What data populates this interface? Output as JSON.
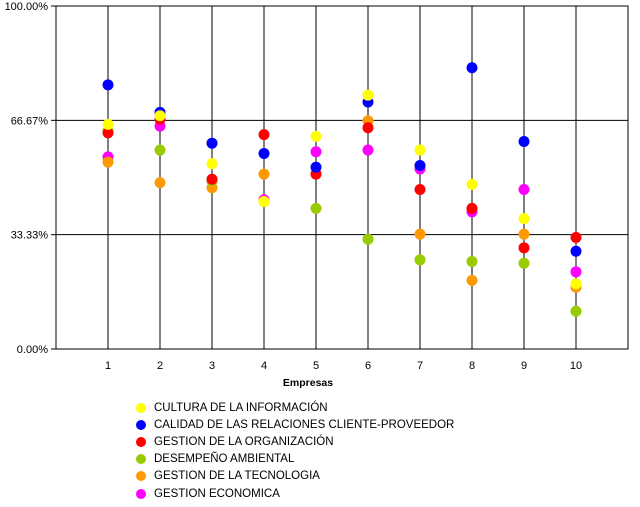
{
  "chart_data": {
    "type": "scatter",
    "title": "",
    "xlabel": "Empresas",
    "ylabel": "",
    "x": [
      1,
      2,
      3,
      4,
      5,
      6,
      7,
      8,
      9,
      10
    ],
    "x_ticks": [
      "1",
      "2",
      "3",
      "4",
      "5",
      "6",
      "7",
      "8",
      "9",
      "10"
    ],
    "y_ticks": [
      "0.00%",
      "33.33%",
      "66.67%",
      "100.00%"
    ],
    "y_tick_values": [
      0,
      33.33,
      66.67,
      100
    ],
    "xlim": [
      0,
      11
    ],
    "ylim": [
      0,
      100
    ],
    "grid": true,
    "legend_position": "bottom",
    "series": [
      {
        "name": "CULTURA DE LA INFORMACIÓN",
        "color": "#ffff00",
        "values": [
          65.5,
          68,
          54,
          43,
          62,
          74,
          58,
          48,
          38,
          19
        ]
      },
      {
        "name": "CALIDAD DE LAS RELACIONES CLIENTE-PROVEEDOR",
        "color": "#0000ff",
        "values": [
          77,
          69,
          60,
          57,
          53,
          72,
          53.5,
          82,
          60.5,
          28.5
        ]
      },
      {
        "name": "GESTION DE LA ORGANIZACIÓN",
        "color": "#ff0000",
        "values": [
          63,
          67,
          49.5,
          62.5,
          51,
          64.5,
          46.5,
          41,
          29.5,
          32.5
        ]
      },
      {
        "name": "DESEMPEÑO AMBIENTAL",
        "color": "#99cc00",
        "values": [
          63.5,
          58,
          49,
          43,
          41,
          32,
          26,
          25.5,
          25,
          11
        ]
      },
      {
        "name": "GESTION DE LA TECNOLOGIA",
        "color": "#ff9900",
        "values": [
          54.5,
          48.5,
          47,
          51,
          51,
          66.5,
          33.5,
          20,
          33.5,
          18
        ]
      },
      {
        "name": "GESTION ECONOMICA",
        "color": "#ff00ff",
        "values": [
          56,
          65,
          49,
          43.5,
          57.5,
          58,
          52.5,
          40,
          46.5,
          22.5
        ]
      }
    ]
  }
}
